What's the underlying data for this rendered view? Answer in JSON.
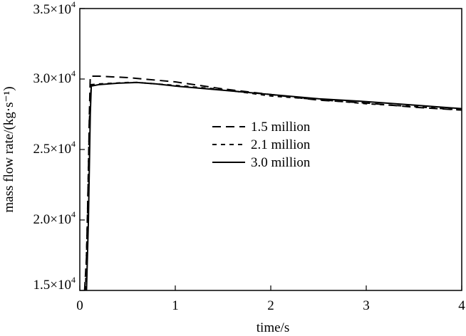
{
  "chart_data": {
    "type": "line",
    "xlabel": "time/s",
    "ylabel": "mass flow rate/(kg·s⁻¹)",
    "xlim": [
      0,
      4
    ],
    "ylim": [
      15000,
      35000
    ],
    "x_ticks": [
      0,
      1,
      2,
      3,
      4
    ],
    "x_tick_labels": [
      "0",
      "1",
      "2",
      "3",
      "4"
    ],
    "y_ticks": [
      15000,
      20000,
      25000,
      30000,
      35000
    ],
    "y_tick_labels": [
      {
        "mant": "1.5×10",
        "exp": "4"
      },
      {
        "mant": "2.0×10",
        "exp": "4"
      },
      {
        "mant": "2.5×10",
        "exp": "4"
      },
      {
        "mant": "3.0×10",
        "exp": "4"
      },
      {
        "mant": "3.5×10",
        "exp": "4"
      }
    ],
    "grid": false,
    "legend_position": "center",
    "series": [
      {
        "name": "1.5 million",
        "style": "dashed",
        "x": [
          0.05,
          0.07,
          0.09,
          0.1,
          0.11,
          0.2,
          0.5,
          1.0,
          1.5,
          2.0,
          2.5,
          3.0,
          3.5,
          4.0
        ],
        "y": [
          15000,
          17400,
          23500,
          27500,
          30200,
          30200,
          30100,
          29800,
          29300,
          28900,
          28500,
          28300,
          28000,
          27800
        ]
      },
      {
        "name": "2.1 million",
        "style": "dotted",
        "x": [
          0.06,
          0.08,
          0.1,
          0.12,
          0.2,
          0.5,
          0.6,
          1.0,
          1.5,
          2.0,
          2.5,
          3.0,
          3.5,
          4.0
        ],
        "y": [
          15000,
          20000,
          27000,
          29600,
          29650,
          29750,
          29760,
          29550,
          29250,
          28800,
          28550,
          28250,
          28050,
          27800
        ]
      },
      {
        "name": "3.0 million",
        "style": "solid",
        "x": [
          0.07,
          0.09,
          0.11,
          0.12,
          0.2,
          0.4,
          0.6,
          0.8,
          1.0,
          1.5,
          2.0,
          2.5,
          3.0,
          3.5,
          4.0
        ],
        "y": [
          15000,
          20000,
          27500,
          29500,
          29600,
          29700,
          29750,
          29650,
          29500,
          29200,
          28900,
          28600,
          28400,
          28150,
          27900
        ]
      }
    ]
  }
}
